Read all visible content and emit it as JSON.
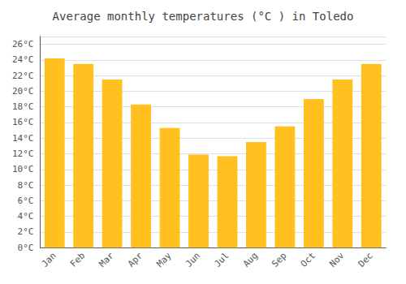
{
  "chart_data": {
    "type": "bar",
    "title": "Average monthly temperatures (°C ) in Toledo",
    "categories": [
      "Jan",
      "Feb",
      "Mar",
      "Apr",
      "May",
      "Jun",
      "Jul",
      "Aug",
      "Sep",
      "Oct",
      "Nov",
      "Dec"
    ],
    "values": [
      24.2,
      23.5,
      21.5,
      18.3,
      15.3,
      11.9,
      11.7,
      13.5,
      15.5,
      19.0,
      21.5,
      23.5
    ],
    "color": "#FFC020",
    "ylim": [
      0,
      27
    ],
    "yticks": [
      {
        "value": 0,
        "label": "0°C"
      },
      {
        "value": 2,
        "label": "2°C"
      },
      {
        "value": 4,
        "label": "4°C"
      },
      {
        "value": 6,
        "label": "6°C"
      },
      {
        "value": 8,
        "label": "8°C"
      },
      {
        "value": 10,
        "label": "10°C"
      },
      {
        "value": 12,
        "label": "12°C"
      },
      {
        "value": 14,
        "label": "14°C"
      },
      {
        "value": 16,
        "label": "16°C"
      },
      {
        "value": 18,
        "label": "18°C"
      },
      {
        "value": 20,
        "label": "20°C"
      },
      {
        "value": 22,
        "label": "22°C"
      },
      {
        "value": 24,
        "label": "24°C"
      },
      {
        "value": 26,
        "label": "26°C"
      }
    ],
    "grid": true
  }
}
